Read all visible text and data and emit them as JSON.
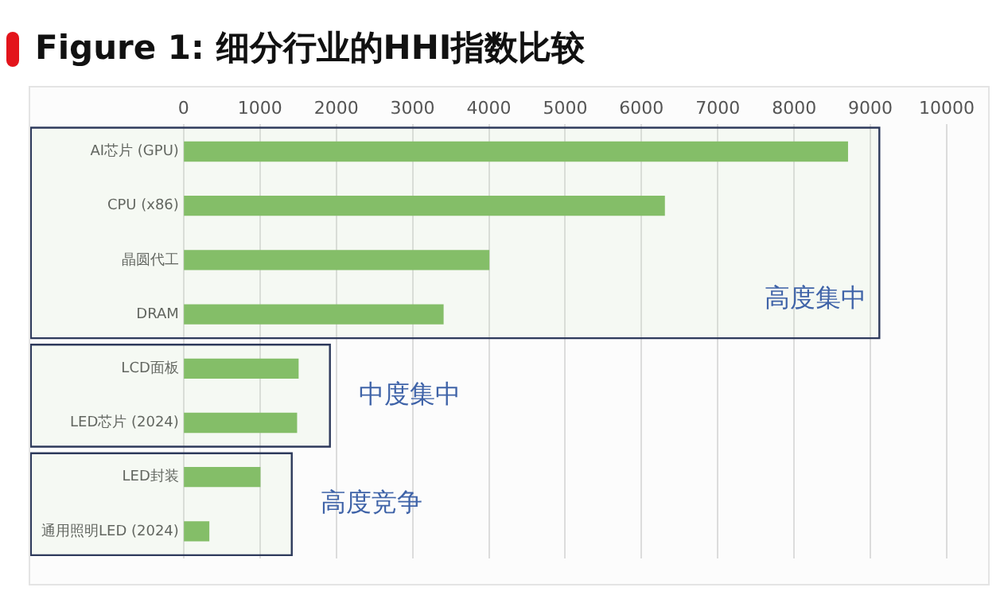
{
  "chart_data": {
    "type": "bar",
    "orientation": "horizontal",
    "title": "Figure 1: 细分行业的HHI指数比较",
    "categories": [
      "AI芯片 (GPU)",
      "CPU (x86)",
      "晶圆代工",
      "DRAM",
      "LCD面板",
      "LED芯片 (2024)",
      "LED封装",
      "通用照明LED (2024)"
    ],
    "values": [
      8700,
      6300,
      4000,
      3400,
      1500,
      1480,
      1000,
      330
    ],
    "color": "#7cb95e",
    "xlim": [
      0,
      10000
    ],
    "xticks": [
      0,
      1000,
      2000,
      3000,
      4000,
      5000,
      6000,
      7000,
      8000,
      9000,
      10000
    ],
    "grid": "x",
    "bands": [
      {
        "axis": "y",
        "from": "AI芯片 (GPU)",
        "to": "DRAM",
        "label": "高度集中"
      },
      {
        "axis": "y",
        "from": "LCD面板",
        "to": "LED芯片 (2024)",
        "label": "中度集中"
      },
      {
        "axis": "y",
        "from": "LED封装",
        "to": "通用照明LED (2024)",
        "label": "高度竞争"
      }
    ]
  }
}
